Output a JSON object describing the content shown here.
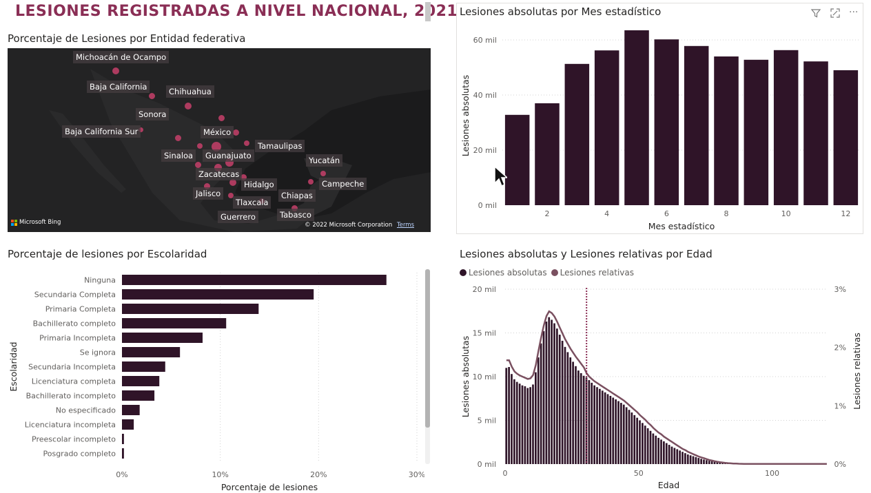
{
  "dashboard": {
    "title": "LESIONES REGISTRADAS A NIVEL NACIONAL, 2021",
    "accent": "#8a2e55",
    "bar_color": "#2f1428",
    "line_color": "#7a5060"
  },
  "map": {
    "title": "Porcentaje de Lesiones por Entidad federativa",
    "bing_label": "Microsoft Bing",
    "copyright": "© 2022 Microsoft Corporation",
    "terms": "Terms",
    "labels": [
      "Michoacán de Ocampo",
      "Baja California",
      "Chihuahua",
      "Sonora",
      "Baja California Sur",
      "México",
      "Tamaulipas",
      "Sinaloa",
      "Guanajuato",
      "Yucatán",
      "Zacatecas",
      "Hidalgo",
      "Campeche",
      "Jalisco",
      "Chiapas",
      "Tlaxcala",
      "Tabasco",
      "Guerrero"
    ]
  },
  "toolbar": {
    "filter_icon": "filter-icon",
    "focus_icon": "focus-mode-icon",
    "more_label": "···"
  },
  "chart_data": [
    {
      "id": "month",
      "type": "bar",
      "title": "Lesiones absolutas por Mes estadístico",
      "xlabel": "Mes estadístico",
      "ylabel": "Lesiones absolutas",
      "categories": [
        1,
        2,
        3,
        4,
        5,
        6,
        7,
        8,
        9,
        10,
        11,
        12
      ],
      "values": [
        32800,
        37000,
        51300,
        56200,
        63500,
        60200,
        57800,
        54000,
        52800,
        56300,
        52200,
        49000
      ],
      "x_ticks": [
        2,
        4,
        6,
        8,
        10,
        12
      ],
      "y_ticks": [
        "0 mil",
        "20 mil",
        "40 mil",
        "60 mil"
      ],
      "ylim": [
        0,
        65000
      ],
      "grid": true
    },
    {
      "id": "school",
      "type": "bar",
      "orientation": "horizontal",
      "title": "Porcentaje de lesiones por Escolaridad",
      "xlabel": "Porcentaje de lesiones",
      "ylabel": "Escolaridad",
      "categories": [
        "Ninguna",
        "Secundaria Completa",
        "Primaria Completa",
        "Bachillerato completo",
        "Primaria Incompleta",
        "Se ignora",
        "Secundaria Incompleta",
        "Licenciatura completa",
        "Bachillerato incompleto",
        "No especificado",
        "Licenciatura incompleta",
        "Preescolar incompleto",
        "Posgrado completo"
      ],
      "values": [
        26.9,
        19.5,
        13.9,
        10.6,
        8.2,
        5.9,
        4.4,
        3.8,
        3.3,
        1.8,
        1.2,
        0.2,
        0.2
      ],
      "x_ticks": [
        "0%",
        "10%",
        "20%",
        "30%"
      ],
      "xlim": [
        0,
        30
      ],
      "grid": true
    },
    {
      "id": "age",
      "type": "bar",
      "title": "Lesiones absolutas y Lesiones relativas por Edad",
      "xlabel": "Edad",
      "ylabel": "Lesiones absolutas",
      "y2label": "Lesiones relativas",
      "legend": [
        "Lesiones absolutas",
        "Lesiones relativas"
      ],
      "legend_colors": [
        "#2f1428",
        "#7a5060"
      ],
      "x_ticks": [
        0,
        50,
        100
      ],
      "y_ticks": [
        "0 mil",
        "5 mil",
        "10 mil",
        "15 mil",
        "20 mil"
      ],
      "y2_ticks": [
        "0%",
        "1%",
        "2%",
        "3%"
      ],
      "xlim": [
        0,
        120
      ],
      "ylim": [
        0,
        20000
      ],
      "reference_line_x": 30,
      "series": [
        {
          "name": "Lesiones absolutas",
          "x": [
            0,
            1,
            2,
            3,
            4,
            5,
            6,
            7,
            8,
            9,
            10,
            11,
            12,
            13,
            14,
            15,
            16,
            17,
            18,
            19,
            20,
            21,
            22,
            23,
            24,
            25,
            26,
            27,
            28,
            29,
            30,
            31,
            32,
            33,
            34,
            35,
            36,
            37,
            38,
            39,
            40,
            41,
            42,
            43,
            44,
            45,
            46,
            47,
            48,
            49,
            50,
            51,
            52,
            53,
            54,
            55,
            56,
            57,
            58,
            59,
            60,
            61,
            62,
            63,
            64,
            65,
            66,
            67,
            68,
            69,
            70,
            71,
            72,
            73,
            74,
            75,
            76,
            77,
            78,
            79,
            80,
            81,
            82,
            83,
            84,
            85,
            86,
            87,
            88,
            89,
            90,
            91,
            92,
            93,
            94,
            95,
            96,
            97,
            98,
            99,
            100,
            101,
            102,
            103,
            104,
            105,
            106,
            107,
            108,
            109,
            110,
            111,
            112,
            113,
            114,
            115,
            116,
            117,
            118,
            119,
            120
          ],
          "values": [
            11000,
            11100,
            10300,
            9700,
            9400,
            9200,
            9000,
            8900,
            8700,
            8800,
            9100,
            10500,
            12200,
            13800,
            15200,
            16300,
            16800,
            16500,
            16100,
            15500,
            14800,
            14100,
            13400,
            12800,
            12200,
            11700,
            11200,
            10700,
            10400,
            10100,
            9900,
            9600,
            9300,
            9000,
            8800,
            8600,
            8400,
            8200,
            8000,
            7800,
            7600,
            7400,
            7200,
            7000,
            6800,
            6500,
            6200,
            5900,
            5600,
            5300,
            5000,
            4700,
            4400,
            4100,
            3800,
            3500,
            3250,
            3000,
            2800,
            2600,
            2400,
            2200,
            2000,
            1850,
            1700,
            1550,
            1400,
            1250,
            1100,
            1000,
            900,
            800,
            700,
            600,
            520,
            450,
            380,
            320,
            260,
            210,
            170,
            140,
            110,
            90,
            70,
            50,
            40,
            30,
            25,
            20,
            15,
            12,
            10,
            8,
            6,
            5,
            4,
            3,
            3,
            2,
            2,
            2,
            2,
            2,
            1,
            1,
            1,
            1,
            1,
            1,
            1,
            1,
            1,
            1,
            1,
            1,
            1,
            1,
            1,
            1,
            1
          ]
        },
        {
          "name": "Lesiones relativas",
          "x": [
            0,
            1,
            2,
            3,
            4,
            5,
            6,
            7,
            8,
            9,
            10,
            11,
            12,
            13,
            14,
            15,
            16,
            17,
            18,
            19,
            20,
            21,
            22,
            23,
            24,
            25,
            26,
            27,
            28,
            29,
            30,
            31,
            32,
            33,
            34,
            35,
            36,
            37,
            38,
            39,
            40,
            41,
            42,
            43,
            44,
            45,
            46,
            47,
            48,
            49,
            50,
            51,
            52,
            53,
            54,
            55,
            56,
            57,
            58,
            59,
            60,
            61,
            62,
            63,
            64,
            65,
            66,
            67,
            68,
            69,
            70,
            71,
            72,
            73,
            74,
            75,
            76,
            77,
            78,
            79,
            80,
            81,
            82,
            83,
            84,
            85,
            86,
            87,
            88,
            89,
            90,
            91,
            92,
            93,
            94,
            95,
            96,
            97,
            98,
            99,
            100,
            101,
            102,
            103,
            104,
            105,
            106,
            107,
            108,
            109,
            110,
            111,
            112,
            113,
            114,
            115,
            116,
            117,
            118,
            119,
            120
          ],
          "values": [
            1.78,
            1.78,
            1.67,
            1.59,
            1.55,
            1.52,
            1.5,
            1.48,
            1.46,
            1.47,
            1.53,
            1.7,
            1.94,
            2.17,
            2.38,
            2.54,
            2.62,
            2.59,
            2.53,
            2.44,
            2.34,
            2.24,
            2.14,
            2.06,
            1.98,
            1.91,
            1.84,
            1.78,
            1.72,
            1.66,
            1.56,
            1.5,
            1.46,
            1.42,
            1.39,
            1.36,
            1.33,
            1.3,
            1.27,
            1.24,
            1.21,
            1.18,
            1.15,
            1.12,
            1.09,
            1.05,
            1.01,
            0.97,
            0.93,
            0.89,
            0.84,
            0.8,
            0.76,
            0.71,
            0.67,
            0.62,
            0.58,
            0.54,
            0.51,
            0.47,
            0.44,
            0.41,
            0.38,
            0.35,
            0.32,
            0.29,
            0.26,
            0.24,
            0.21,
            0.19,
            0.17,
            0.15,
            0.13,
            0.115,
            0.1,
            0.085,
            0.07,
            0.06,
            0.05,
            0.04,
            0.033,
            0.027,
            0.021,
            0.017,
            0.013,
            0.01,
            0.008,
            0.006,
            0.005,
            0.004,
            0.003,
            0.003,
            0.002,
            0.002,
            0.002,
            0.002,
            0.002,
            0.002,
            0.002,
            0.002,
            0.002,
            0.002,
            0.002,
            0.002,
            0.002,
            0.002,
            0.002,
            0.002,
            0.002,
            0.002,
            0.002,
            0.002,
            0.002,
            0.002,
            0.002,
            0.002,
            0.002,
            0.002,
            0.002,
            0.002,
            0.002
          ]
        }
      ]
    }
  ]
}
